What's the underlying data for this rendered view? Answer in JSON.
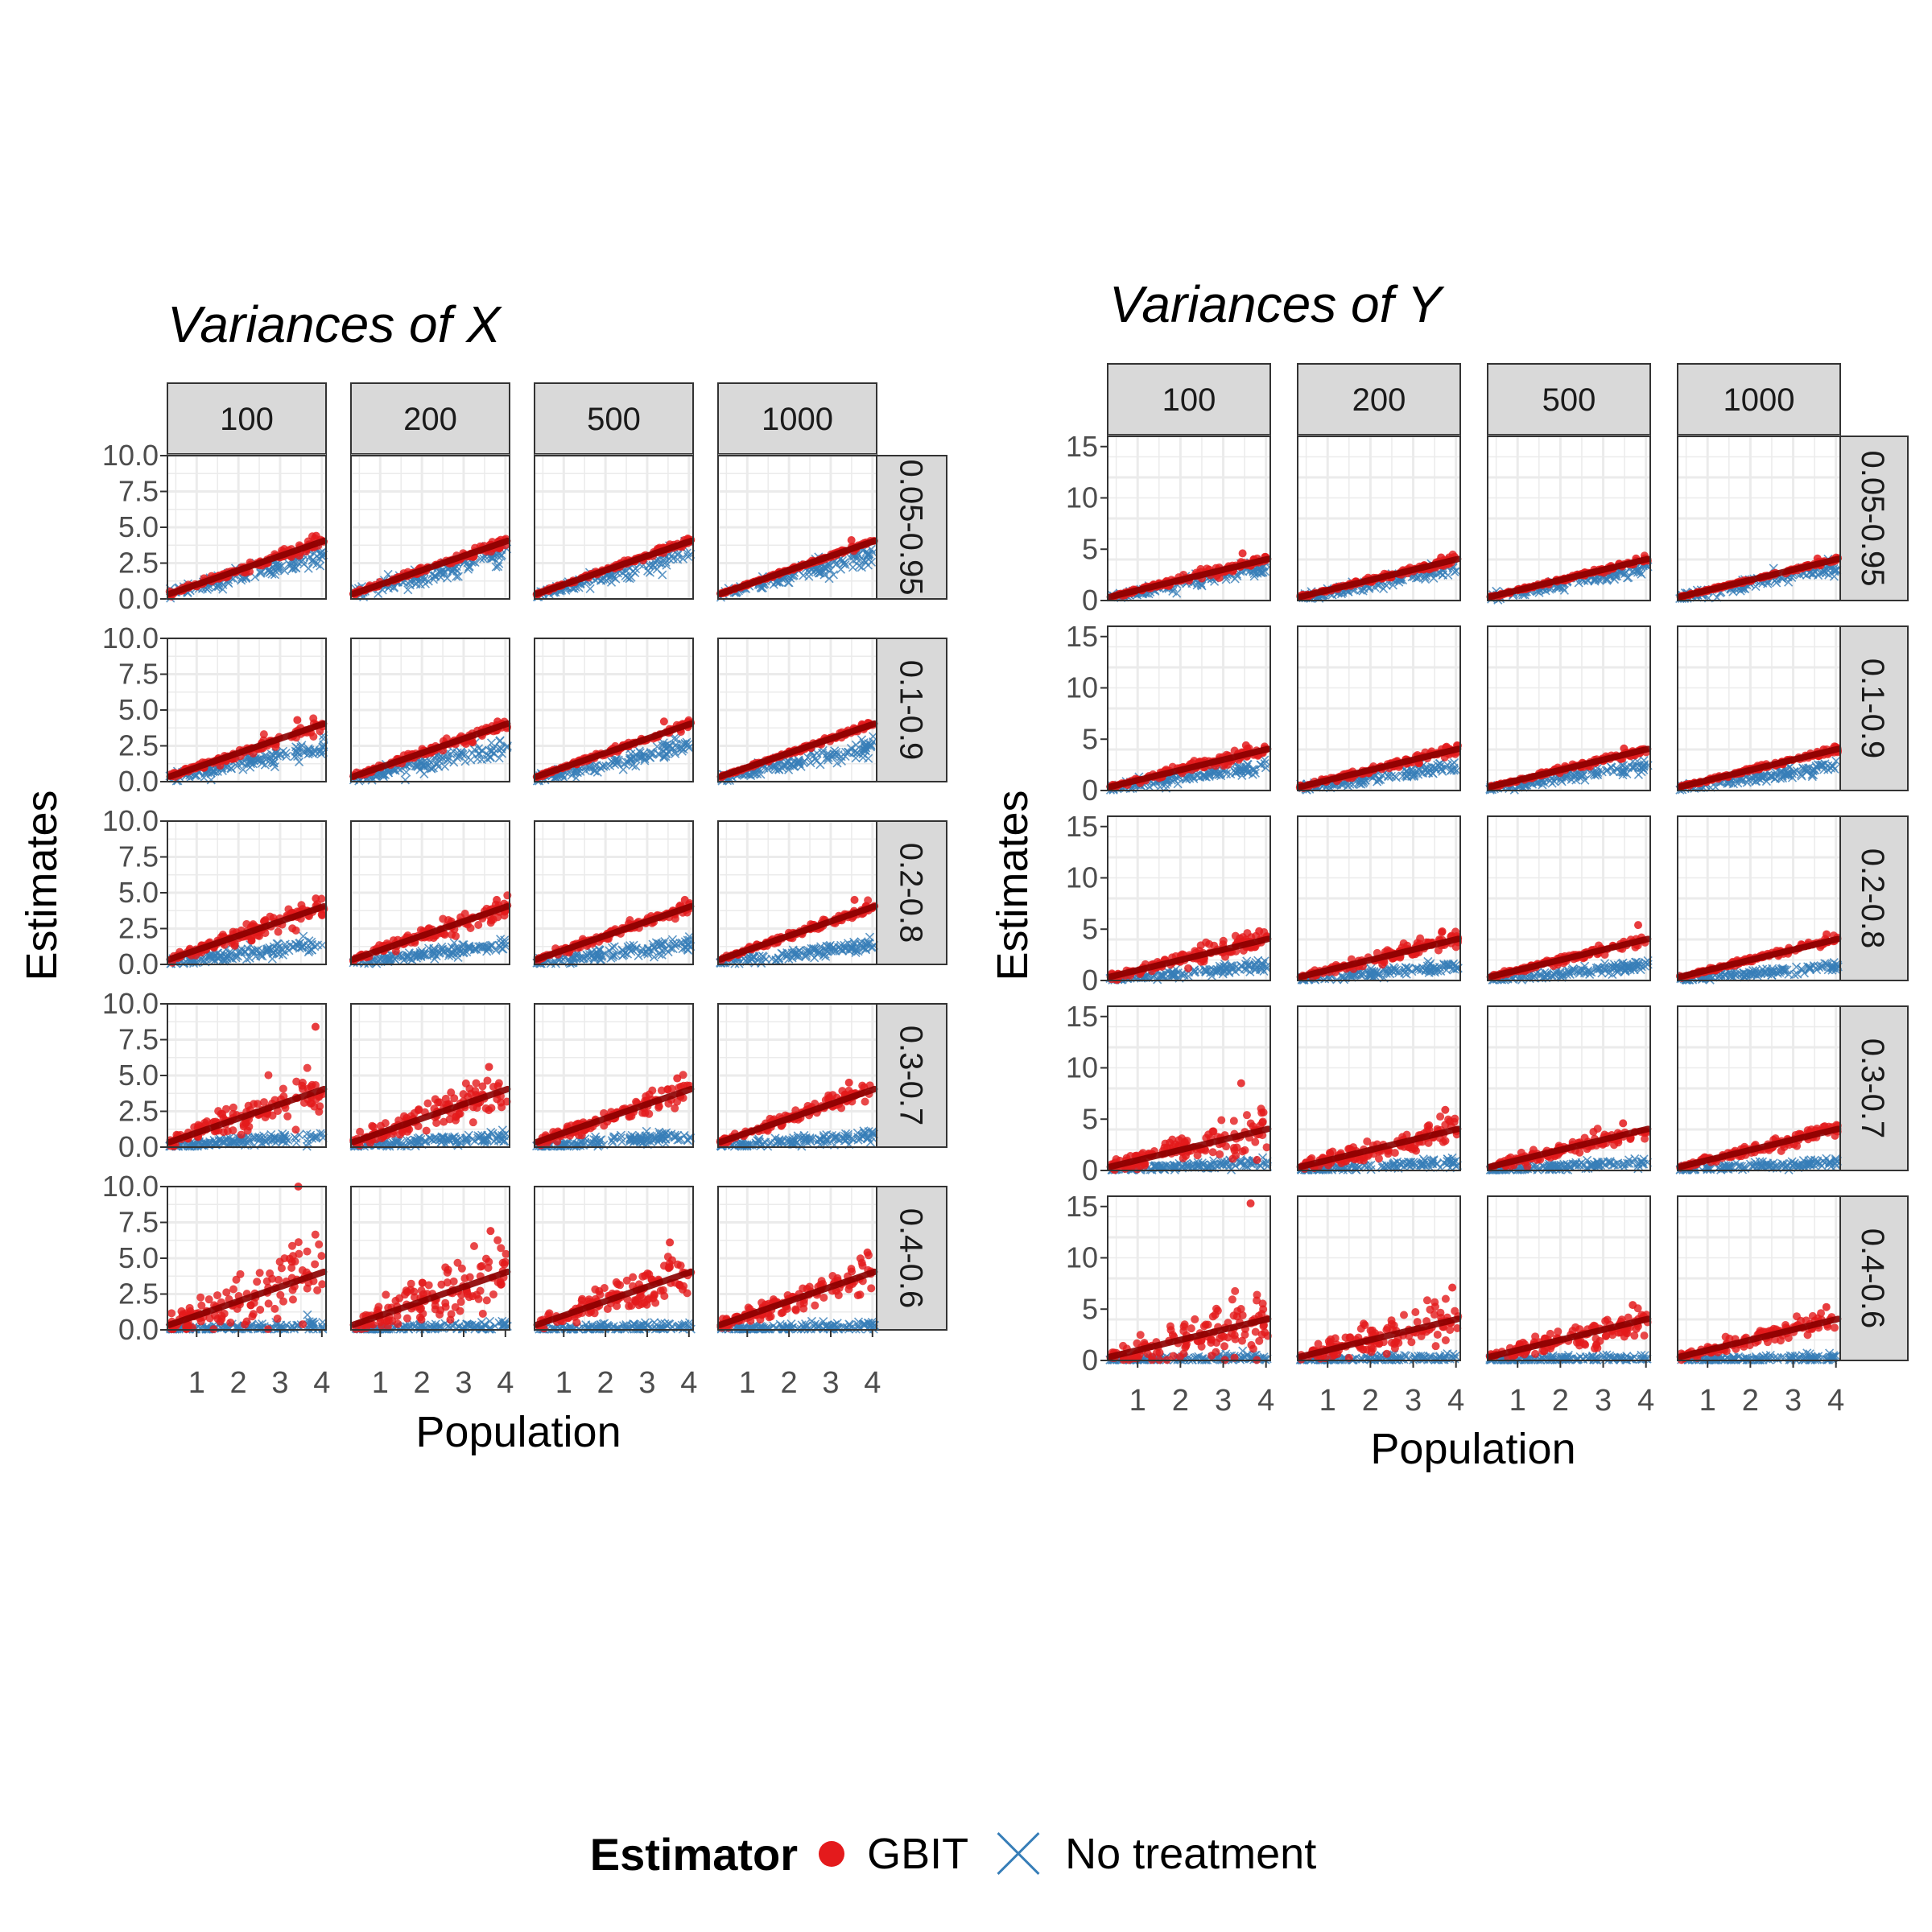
{
  "chart_data": [
    {
      "type": "scatter",
      "title": "Variances of X",
      "xlabel": "Population",
      "ylabel": "Estimates",
      "col_facets": [
        "100",
        "200",
        "500",
        "1000"
      ],
      "row_facets": [
        "0.05-0.95",
        "0.1-0.9",
        "0.2-0.8",
        "0.3-0.7",
        "0.4-0.6"
      ],
      "xlim": [
        0.3,
        4.1
      ],
      "x_ticks": [
        "1",
        "2",
        "3",
        "4"
      ],
      "ylim": [
        0,
        10
      ],
      "y_ticks": [
        "0.0",
        "2.5",
        "5.0",
        "7.5",
        "10.0"
      ],
      "y_tick_values": [
        0,
        2.5,
        5,
        7.5,
        10
      ],
      "grid": true,
      "series": [
        {
          "name": "GBIT",
          "marker": "circle",
          "color": "#E41A1C",
          "trend": "y = x (population)",
          "spread_by_row": [
            0.12,
            0.15,
            0.25,
            0.45,
            0.85
          ],
          "spread_by_col": [
            1.0,
            0.8,
            0.55,
            0.4
          ],
          "max_outlier_by_panel": [
            [
              4.4,
              4.0,
              4.1,
              4.1
            ],
            [
              4.3,
              4.2,
              4.2,
              4.0
            ],
            [
              4.6,
              4.5,
              4.5,
              4.5
            ],
            [
              8.4,
              5.6,
              4.8,
              4.5
            ],
            [
              10.1,
              6.9,
              6.1,
              5.4
            ]
          ]
        },
        {
          "name": "No treatment",
          "marker": "x",
          "color": "#377EB8",
          "trend_slope_by_row": [
            0.8,
            0.6,
            0.35,
            0.2,
            0.07
          ]
        }
      ]
    },
    {
      "type": "scatter",
      "title": "Variances of Y",
      "xlabel": "Population",
      "ylabel": "Estimates",
      "col_facets": [
        "100",
        "200",
        "500",
        "1000"
      ],
      "row_facets": [
        "0.05-0.95",
        "0.1-0.9",
        "0.2-0.8",
        "0.3-0.7",
        "0.4-0.6"
      ],
      "xlim": [
        0.3,
        4.1
      ],
      "x_ticks": [
        "1",
        "2",
        "3",
        "4"
      ],
      "ylim": [
        0,
        16
      ],
      "y_ticks": [
        "0",
        "5",
        "10",
        "15"
      ],
      "y_tick_values": [
        0,
        5,
        10,
        15
      ],
      "grid": true,
      "series": [
        {
          "name": "GBIT",
          "marker": "circle",
          "color": "#E41A1C",
          "trend": "y = x (population)",
          "spread_by_row": [
            0.15,
            0.2,
            0.3,
            0.55,
            0.9
          ],
          "spread_by_col": [
            1.0,
            0.8,
            0.55,
            0.4
          ],
          "max_outlier_by_panel": [
            [
              4.6,
              4.2,
              4.1,
              4.1
            ],
            [
              4.4,
              4.2,
              4.1,
              4.0
            ],
            [
              4.8,
              4.7,
              5.4,
              4.5
            ],
            [
              8.5,
              5.9,
              4.6,
              4.3
            ],
            [
              15.3,
              7.1,
              5.4,
              5.2
            ]
          ]
        },
        {
          "name": "No treatment",
          "marker": "x",
          "color": "#377EB8",
          "trend_slope_by_row": [
            0.8,
            0.6,
            0.35,
            0.2,
            0.07
          ]
        }
      ]
    }
  ],
  "legend": {
    "title": "Estimator",
    "items": [
      "GBIT",
      "No treatment"
    ]
  },
  "colors": {
    "gbit": "#E41A1C",
    "no_treatment": "#377EB8",
    "trend_line": "#8B0000",
    "strip_fill": "#D9D9D9",
    "grid": "#EBEBEB"
  }
}
